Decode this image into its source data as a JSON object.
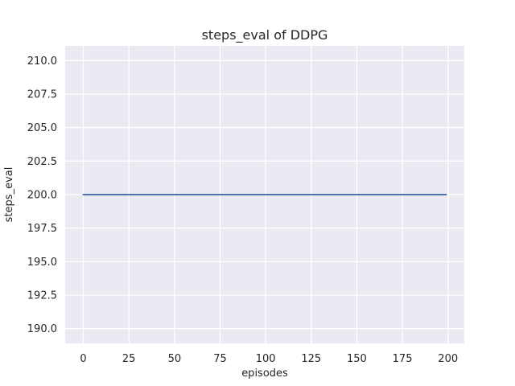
{
  "colors": {
    "figure_bg": "#ffffff",
    "plot_bg": "#eaeaf2",
    "grid": "#ffffff",
    "line": "#4c72b0",
    "text": "#262626"
  },
  "chart_data": {
    "type": "line",
    "title": "steps_eval of DDPG",
    "xlabel": "episodes",
    "ylabel": "steps_eval",
    "x_tick_values": [
      0,
      25,
      50,
      75,
      100,
      125,
      150,
      175,
      200
    ],
    "x_tick_labels": [
      "0",
      "25",
      "50",
      "75",
      "100",
      "125",
      "150",
      "175",
      "200"
    ],
    "y_tick_values": [
      190,
      192.5,
      195,
      197.5,
      200,
      202.5,
      205,
      207.5,
      210
    ],
    "y_tick_labels": [
      "190.0",
      "192.5",
      "195.0",
      "197.5",
      "200.0",
      "202.5",
      "205.0",
      "207.5",
      "210.0"
    ],
    "xlim": [
      -9.95,
      208.95
    ],
    "ylim": [
      188.9,
      211.1
    ],
    "grid": true,
    "legend_position": "none",
    "series": [
      {
        "name": "steps_eval",
        "constant_value": 200,
        "x": [
          0,
          199
        ],
        "y": [
          200,
          200
        ],
        "color": "#4c72b0"
      }
    ]
  }
}
